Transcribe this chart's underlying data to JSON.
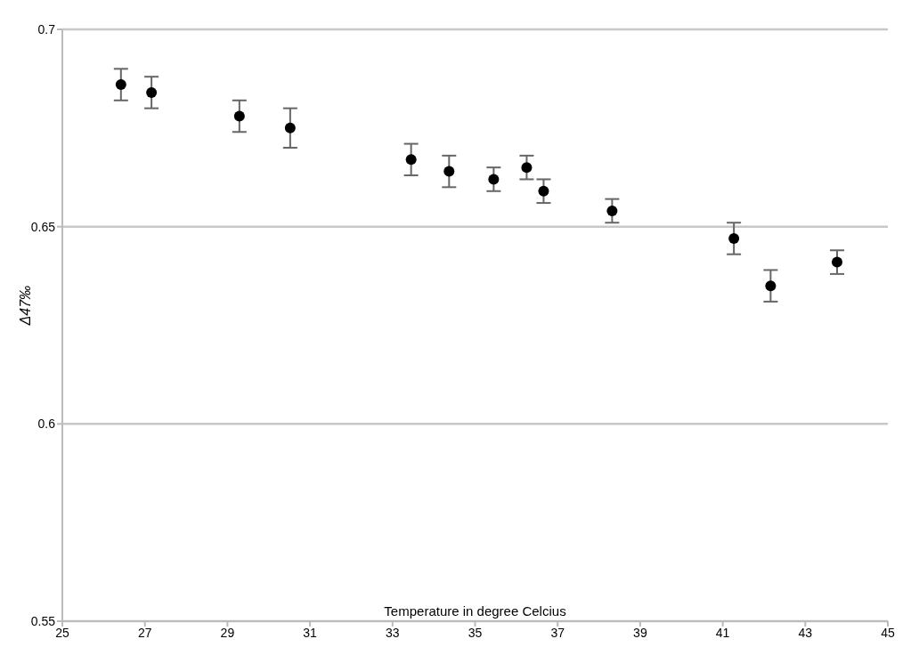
{
  "chart_data": {
    "type": "scatter",
    "xlabel": "Temperature in degree Celcius",
    "ylabel": "Δ47‰",
    "x": [
      26.42,
      27.16,
      29.29,
      30.52,
      33.45,
      34.37,
      35.45,
      36.25,
      36.66,
      38.32,
      41.27,
      42.16,
      43.77
    ],
    "series": [
      {
        "color": "#000000",
        "values": [
          0.686,
          0.684,
          0.678,
          0.675,
          0.667,
          0.664,
          0.662,
          0.665,
          0.659,
          0.654,
          0.647,
          0.635,
          0.641
        ],
        "errors": [
          0.004,
          0.004,
          0.004,
          0.005,
          0.004,
          0.004,
          0.003,
          0.003,
          0.003,
          0.003,
          0.004,
          0.004,
          0.003
        ]
      }
    ],
    "xlim": [
      25,
      45
    ],
    "xticks": [
      25,
      27,
      29,
      31,
      33,
      35,
      37,
      39,
      41,
      43,
      45
    ],
    "ylim": [
      0.55,
      0.7
    ],
    "yticks": [
      0.55,
      0.6,
      0.65,
      0.7
    ],
    "grid": "y",
    "marker": "circle"
  }
}
